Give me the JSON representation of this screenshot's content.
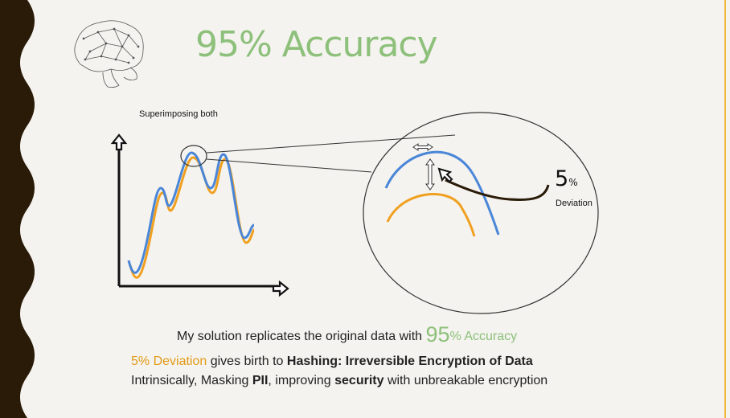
{
  "title": "95% Accuracy",
  "chart": {
    "label": "Superimposing both"
  },
  "zoom": {
    "deviation_number": "5",
    "deviation_percent": "%",
    "deviation_label": "Deviation"
  },
  "text": {
    "line1_pre": "My solution replicates the original data with ",
    "line1_num": "95",
    "line1_post": "% Accuracy",
    "line2_highlight": "5% Deviation",
    "line2_mid": " gives birth to ",
    "line2_bold": "Hashing: Irreversible Encryption of Data",
    "line3_a": "Intrinsically, Masking ",
    "line3_b": "PII",
    "line3_c": ", improving ",
    "line3_d": "security",
    "line3_e": " with unbreakable encryption"
  },
  "colors": {
    "accent_green": "#8dc07a",
    "blue_line": "#4a86d8",
    "orange_line": "#f0a020",
    "left_wave": "#2a1a08",
    "right_border": "#f0b73c"
  },
  "icons": [
    "brain-icon",
    "up-arrow-icon",
    "right-arrow-icon",
    "double-arrow-icon"
  ]
}
